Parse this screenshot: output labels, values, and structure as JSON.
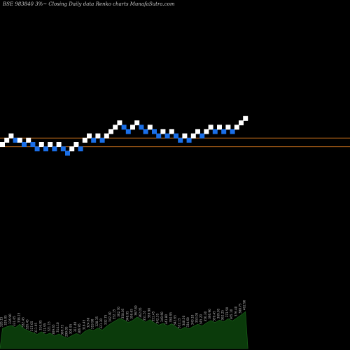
{
  "chart_data": {
    "type": "renko",
    "title": "BSE 983840 3%~ Closing Daily data Renko charts MunafaSutra.com",
    "colors": {
      "background": "#000000",
      "up_brick": "#ffffff",
      "down_brick": "#1a6fe8",
      "reference_line": "#c46d1b",
      "volume_fill": "#0b3b0b",
      "volume_stroke": "#1e6b1e",
      "volume_label": "#bbbbbb"
    },
    "reference_levels": [
      1.5,
      -0.5
    ],
    "bricks": [
      {
        "dir": "up",
        "level": 0
      },
      {
        "dir": "up",
        "level": 1
      },
      {
        "dir": "up",
        "level": 2
      },
      {
        "dir": "down",
        "level": 1
      },
      {
        "dir": "up",
        "level": 1
      },
      {
        "dir": "down",
        "level": 0
      },
      {
        "dir": "up",
        "level": 1
      },
      {
        "dir": "down",
        "level": 0
      },
      {
        "dir": "down",
        "level": -1
      },
      {
        "dir": "up",
        "level": 0
      },
      {
        "dir": "down",
        "level": -1
      },
      {
        "dir": "up",
        "level": 0
      },
      {
        "dir": "down",
        "level": -1
      },
      {
        "dir": "up",
        "level": 0
      },
      {
        "dir": "down",
        "level": -1
      },
      {
        "dir": "down",
        "level": -2
      },
      {
        "dir": "up",
        "level": -1
      },
      {
        "dir": "up",
        "level": 0
      },
      {
        "dir": "down",
        "level": -1
      },
      {
        "dir": "up",
        "level": 1
      },
      {
        "dir": "up",
        "level": 2
      },
      {
        "dir": "down",
        "level": 1
      },
      {
        "dir": "up",
        "level": 2
      },
      {
        "dir": "down",
        "level": 1
      },
      {
        "dir": "up",
        "level": 2
      },
      {
        "dir": "up",
        "level": 3
      },
      {
        "dir": "up",
        "level": 4
      },
      {
        "dir": "up",
        "level": 5
      },
      {
        "dir": "down",
        "level": 4
      },
      {
        "dir": "down",
        "level": 3
      },
      {
        "dir": "up",
        "level": 4
      },
      {
        "dir": "up",
        "level": 5
      },
      {
        "dir": "down",
        "level": 4
      },
      {
        "dir": "down",
        "level": 3
      },
      {
        "dir": "up",
        "level": 4
      },
      {
        "dir": "down",
        "level": 3
      },
      {
        "dir": "down",
        "level": 2
      },
      {
        "dir": "up",
        "level": 3
      },
      {
        "dir": "down",
        "level": 2
      },
      {
        "dir": "up",
        "level": 3
      },
      {
        "dir": "down",
        "level": 2
      },
      {
        "dir": "down",
        "level": 1
      },
      {
        "dir": "up",
        "level": 2
      },
      {
        "dir": "down",
        "level": 1
      },
      {
        "dir": "up",
        "level": 2
      },
      {
        "dir": "up",
        "level": 3
      },
      {
        "dir": "down",
        "level": 2
      },
      {
        "dir": "up",
        "level": 3
      },
      {
        "dir": "up",
        "level": 4
      },
      {
        "dir": "down",
        "level": 3
      },
      {
        "dir": "up",
        "level": 4
      },
      {
        "dir": "down",
        "level": 3
      },
      {
        "dir": "up",
        "level": 4
      },
      {
        "dir": "down",
        "level": 3
      },
      {
        "dir": "up",
        "level": 4
      },
      {
        "dir": "up",
        "level": 5
      },
      {
        "dir": "up",
        "level": 6
      }
    ],
    "volume": [
      {
        "label": "326.15",
        "value": 48
      },
      {
        "label": "329.05",
        "value": 52
      },
      {
        "label": "336.90",
        "value": 55
      },
      {
        "label": "331.65",
        "value": 50
      },
      {
        "label": "338.15",
        "value": 58
      },
      {
        "label": "332.45",
        "value": 47
      },
      {
        "label": "326.45",
        "value": 42
      },
      {
        "label": "317.05",
        "value": 38
      },
      {
        "label": "311.95",
        "value": 34
      },
      {
        "label": "316.95",
        "value": 40
      },
      {
        "label": "311.95",
        "value": 33
      },
      {
        "label": "321.15",
        "value": 37
      },
      {
        "label": "309.65",
        "value": 30
      },
      {
        "label": "314.10",
        "value": 35
      },
      {
        "label": "309.75",
        "value": 29
      },
      {
        "label": "299.05",
        "value": 25
      },
      {
        "label": "304.95",
        "value": 31
      },
      {
        "label": "311.40",
        "value": 36
      },
      {
        "label": "306.95",
        "value": 32
      },
      {
        "label": "318.45",
        "value": 41
      },
      {
        "label": "324.60",
        "value": 46
      },
      {
        "label": "319.90",
        "value": 43
      },
      {
        "label": "328.35",
        "value": 49
      },
      {
        "label": "321.30",
        "value": 44
      },
      {
        "label": "332.75",
        "value": 53
      },
      {
        "label": "342.40",
        "value": 60
      },
      {
        "label": "352.15",
        "value": 66
      },
      {
        "label": "362.70",
        "value": 72
      },
      {
        "label": "358.05",
        "value": 68
      },
      {
        "label": "348.95",
        "value": 62
      },
      {
        "label": "356.65",
        "value": 67
      },
      {
        "label": "367.80",
        "value": 75
      },
      {
        "label": "362.05",
        "value": 70
      },
      {
        "label": "351.55",
        "value": 63
      },
      {
        "label": "359.90",
        "value": 69
      },
      {
        "label": "351.45",
        "value": 61
      },
      {
        "label": "342.35",
        "value": 56
      },
      {
        "label": "349.60",
        "value": 60
      },
      {
        "label": "341.80",
        "value": 54
      },
      {
        "label": "350.95",
        "value": 59
      },
      {
        "label": "342.65",
        "value": 52
      },
      {
        "label": "332.15",
        "value": 45
      },
      {
        "label": "340.50",
        "value": 51
      },
      {
        "label": "334.60",
        "value": 47
      },
      {
        "label": "343.10",
        "value": 53
      },
      {
        "label": "353.05",
        "value": 58
      },
      {
        "label": "345.20",
        "value": 54
      },
      {
        "label": "356.30",
        "value": 61
      },
      {
        "label": "366.90",
        "value": 67
      },
      {
        "label": "359.45",
        "value": 62
      },
      {
        "label": "369.05",
        "value": 68
      },
      {
        "label": "362.25",
        "value": 64
      },
      {
        "label": "373.50",
        "value": 71
      },
      {
        "label": "365.10",
        "value": 66
      },
      {
        "label": "376.40",
        "value": 73
      },
      {
        "label": "388.75",
        "value": 80
      },
      {
        "label": "402.90",
        "value": 88
      }
    ]
  }
}
